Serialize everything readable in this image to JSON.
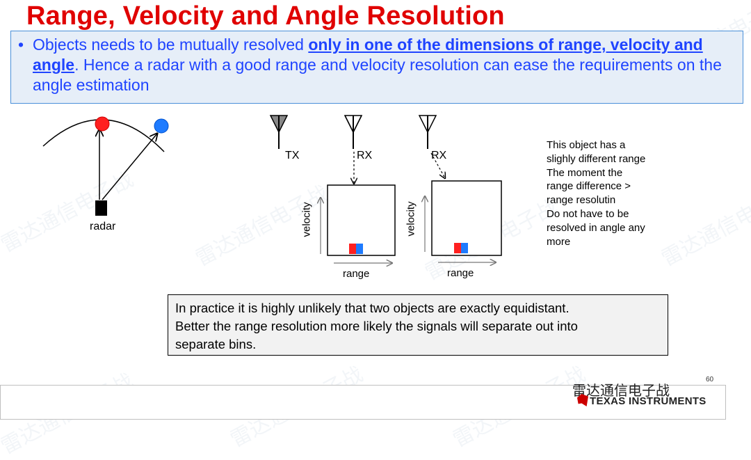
{
  "title": "Range, Velocity and Angle Resolution",
  "bullet": {
    "dot": "•",
    "part1": "Objects needs to be mutually resolved ",
    "emphasis": "only in one of the dimensions of range, velocity and angle",
    "part2": ". Hence a radar with a  good range and velocity resolution can ease the requirements on the angle estimation"
  },
  "diagram": {
    "radar_label": "radar",
    "tx_label": "TX",
    "rx1_label": "RX",
    "rx2_label": "RX",
    "velocity_label_1": "velocity",
    "range_label_1": "range",
    "velocity_label_2": "velocity",
    "range_label_2": "range",
    "colors": {
      "object_red": "#ff2020",
      "object_blue": "#1e7bff",
      "tx_fill": "#888888"
    }
  },
  "note_lines": [
    "This object has a",
    "slighly different range",
    "The moment the",
    "range difference >",
    "range resolutin",
    "Do not have to be",
    "resolved in angle any",
    "more"
  ],
  "practice_lines": [
    "In practice it is highly unlikely that two objects are exactly equidistant.",
    "Better the range resolution more likely the signals will separate out into",
    "separate bins."
  ],
  "footer": {
    "page_number": "60",
    "wechat_name": "雷达通信电子战",
    "company": "TEXAS INSTRUMENTS"
  },
  "watermark": "雷达通信电子战"
}
